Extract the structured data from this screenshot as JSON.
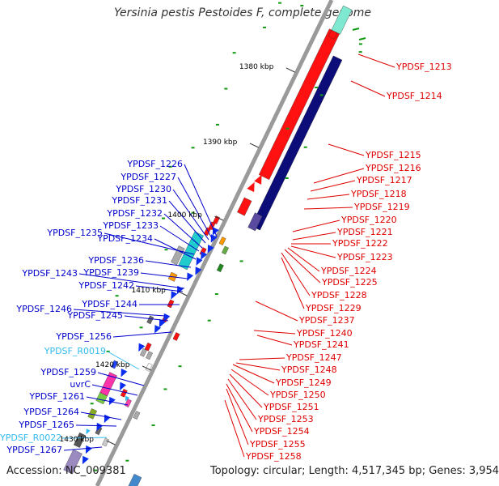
{
  "title": "Yersinia pestis Pestoides F, complete genome",
  "footer": {
    "accession": "Accession: NC_009381",
    "topology": "Topology: circular; Length: 4,517,345 bp; Genes: 3,954"
  },
  "colors": {
    "backbone": "#9a9a9a",
    "forward_label": "#e00000",
    "reverse_label": "#0000cc",
    "rna_label": "#33bbee",
    "cds_red": "#ff1111",
    "cds_navy": "#0d0d7a",
    "cds_blue": "#0a2df0",
    "dot": "#119911"
  },
  "kbp_ticks": [
    "1380 kbp",
    "1390 kbp",
    "1400 kbp",
    "1410 kbp",
    "1420 kbp",
    "1430 kbp"
  ],
  "right_labels": [
    "YPDSF_1213",
    "YPDSF_1214",
    "YPDSF_1215",
    "YPDSF_1216",
    "YPDSF_1217",
    "YPDSF_1218",
    "YPDSF_1219",
    "YPDSF_1220",
    "YPDSF_1221",
    "YPDSF_1222",
    "YPDSF_1223",
    "YPDSF_1224",
    "YPDSF_1225",
    "YPDSF_1228",
    "YPDSF_1229",
    "YPDSF_1237",
    "YPDSF_1240",
    "YPDSF_1241",
    "YPDSF_1247",
    "YPDSF_1248",
    "YPDSF_1249",
    "YPDSF_1250",
    "YPDSF_1251",
    "YPDSF_1253",
    "YPDSF_1254",
    "YPDSF_1255",
    "YPDSF_1258"
  ],
  "left_labels": [
    "YPDSF_1226",
    "YPDSF_1227",
    "YPDSF_1230",
    "YPDSF_1231",
    "YPDSF_1232",
    "YPDSF_1233",
    "YPDSF_1235",
    "YPDSF_1234",
    "YPDSF_1236",
    "YPDSF_1243",
    "YPDSF_1239",
    "YPDSF_1242",
    "YPDSF_1244",
    "YPDSF_1246",
    "YPDSF_1245",
    "YPDSF_1256",
    "YPDSF_R0019",
    "YPDSF_1259",
    "uvrC",
    "YPDSF_1261",
    "YPDSF_1264",
    "YPDSF_1265",
    "YPDSF_R0022",
    "YPDSF_1267"
  ]
}
